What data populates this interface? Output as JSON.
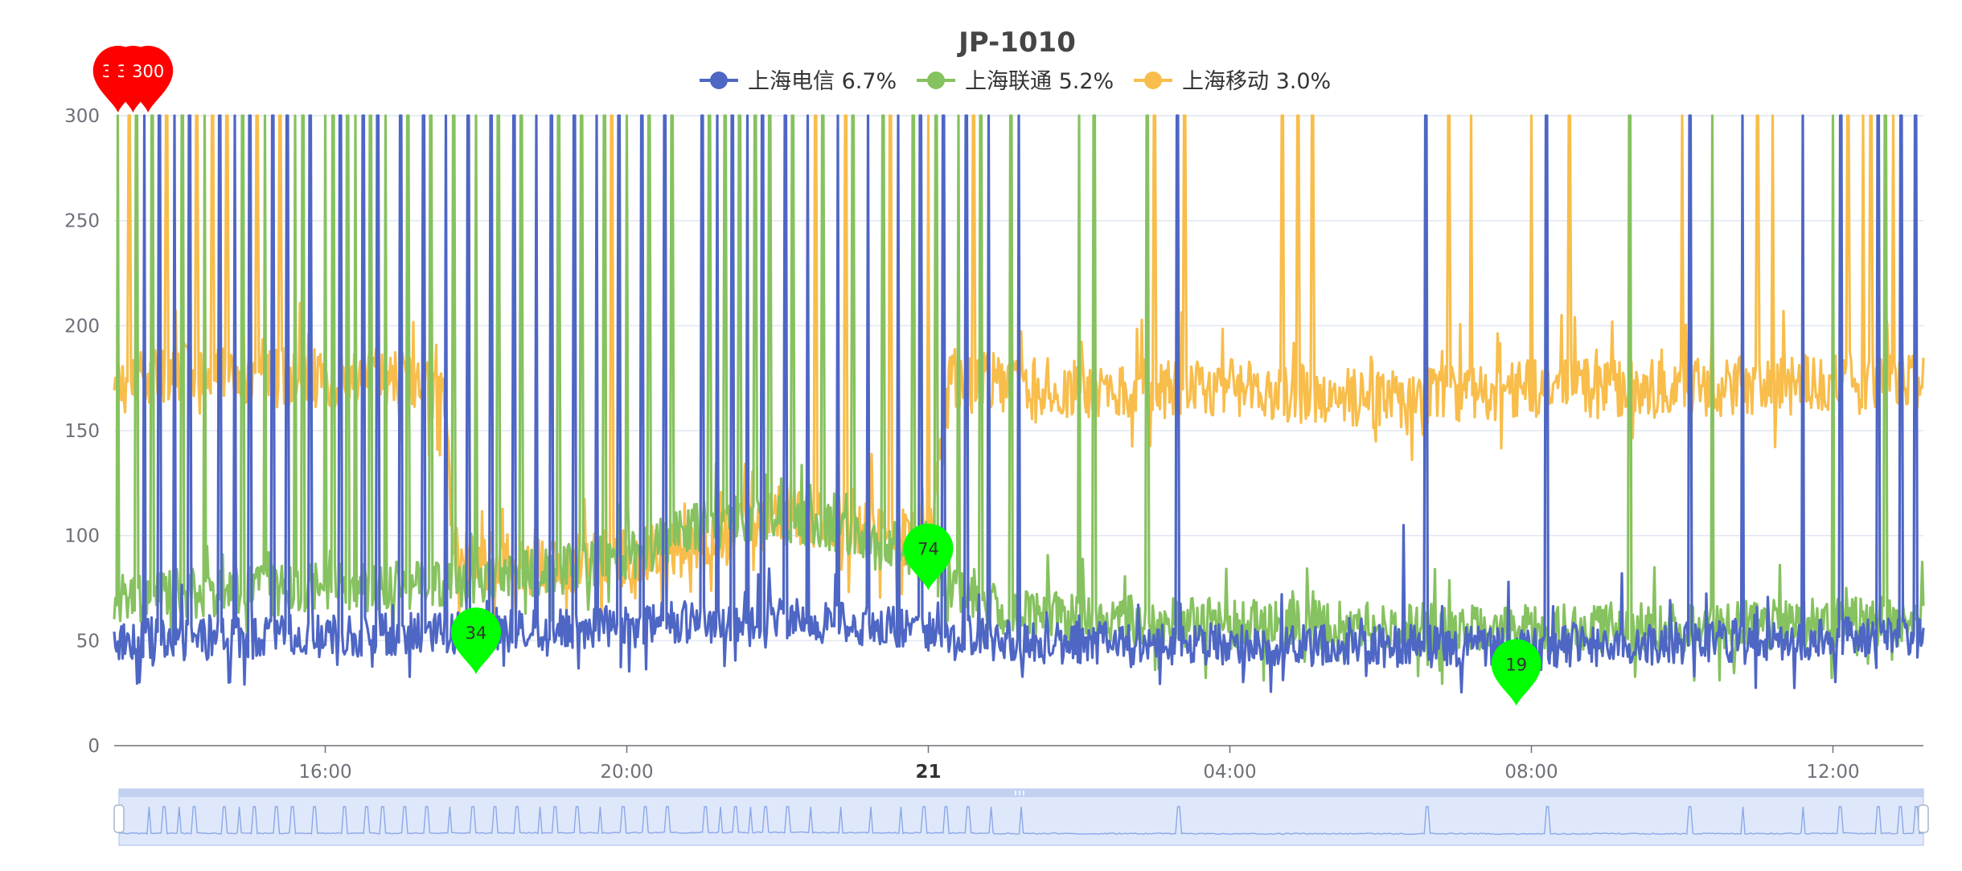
{
  "chart_data": {
    "type": "line",
    "title": "JP-1010",
    "colors": {
      "series_blue": "#4e66c4",
      "series_green": "#86c25f",
      "series_yellow": "#f8bd4b",
      "grid": "#e0e6f1",
      "axis": "#6e7079",
      "max_pin": "#ff0000",
      "min_pin": "#00ff00",
      "zoom_fill": "#dfe8fb",
      "zoom_border": "#c3d1f0",
      "zoom_line": "#8aa8e8"
    },
    "ylim": [
      0,
      300
    ],
    "y_ticks": [
      0,
      50,
      100,
      150,
      200,
      250,
      300
    ],
    "x_range_hours": [
      13.2,
      37.2
    ],
    "x_ticks": [
      {
        "label": "16:00",
        "hour": 16,
        "bold": false
      },
      {
        "label": "20:00",
        "hour": 20,
        "bold": false
      },
      {
        "label": "21",
        "hour": 24,
        "bold": true
      },
      {
        "label": "04:00",
        "hour": 28,
        "bold": false
      },
      {
        "label": "08:00",
        "hour": 32,
        "bold": false
      },
      {
        "label": "12:00",
        "hour": 36,
        "bold": false
      }
    ],
    "legend_position": "top-center",
    "grid": true,
    "series": [
      {
        "name": "上海电信 6.7%",
        "legend_label": "上海电信 6.7%",
        "color": "#4e66c4",
        "baseline": [
          [
            13.2,
            50
          ],
          [
            16,
            52
          ],
          [
            19,
            55
          ],
          [
            20,
            58
          ],
          [
            22,
            60
          ],
          [
            23,
            58
          ],
          [
            24,
            55
          ],
          [
            25,
            50
          ],
          [
            28,
            48
          ],
          [
            32,
            47
          ],
          [
            35,
            50
          ],
          [
            37.2,
            52
          ]
        ],
        "noise": 10,
        "spikes_to_300": [
          13.6,
          13.8,
          14.0,
          14.2,
          14.6,
          14.8,
          15.0,
          15.3,
          15.5,
          15.8,
          16.2,
          16.5,
          16.7,
          17.0,
          17.3,
          17.6,
          17.9,
          18.2,
          18.5,
          18.8,
          19.0,
          19.3,
          19.6,
          19.9,
          20.2,
          20.5,
          21.0,
          21.2,
          21.4,
          21.6,
          21.8,
          22.1,
          22.4,
          22.8,
          23.2,
          23.6,
          23.9,
          24.2,
          24.5,
          24.8,
          25.2,
          27.3,
          30.6,
          32.2,
          34.1,
          34.8,
          35.6,
          36.1,
          36.6,
          36.9,
          37.1
        ],
        "minor_peaks": [
          [
            30.3,
            105
          ],
          [
            31.7,
            78
          ],
          [
            33.2,
            82
          ]
        ]
      },
      {
        "name": "上海联通 5.2%",
        "legend_label": "上海联通 5.2%",
        "color": "#86c25f",
        "baseline": [
          [
            13.2,
            70
          ],
          [
            14,
            72
          ],
          [
            16,
            75
          ],
          [
            18,
            78
          ],
          [
            20,
            90
          ],
          [
            21,
            105
          ],
          [
            22,
            110
          ],
          [
            23,
            100
          ],
          [
            24,
            85
          ],
          [
            25,
            62
          ],
          [
            28,
            58
          ],
          [
            32,
            55
          ],
          [
            35,
            57
          ],
          [
            37.2,
            60
          ]
        ],
        "noise": 12,
        "spikes_to_300": [
          13.25,
          13.5,
          13.7,
          14.1,
          14.4,
          14.9,
          15.2,
          15.6,
          15.7,
          16.0,
          16.1,
          16.3,
          16.4,
          16.6,
          16.8,
          17.1,
          17.4,
          17.7,
          18.0,
          18.3,
          18.6,
          19.1,
          19.4,
          19.7,
          20.0,
          20.3,
          20.6,
          21.1,
          21.3,
          21.5,
          21.7,
          21.9,
          22.2,
          22.6,
          23.0,
          23.4,
          23.8,
          24.1,
          24.4,
          24.7,
          25.1,
          26.0,
          26.2,
          26.9,
          33.3,
          34.4,
          36.0,
          36.7
        ],
        "minor_peaks": []
      },
      {
        "name": "上海移动 3.0%",
        "legend_label": "上海移动 3.0%",
        "color": "#f8bd4b",
        "baseline": [
          [
            13.2,
            170
          ],
          [
            14,
            178
          ],
          [
            15,
            176
          ],
          [
            16,
            175
          ],
          [
            17,
            175
          ],
          [
            17.6,
            165
          ],
          [
            17.7,
            90
          ],
          [
            19,
            85
          ],
          [
            20,
            90
          ],
          [
            21,
            95
          ],
          [
            22,
            110
          ],
          [
            23,
            105
          ],
          [
            24,
            95
          ],
          [
            24.3,
            175
          ],
          [
            26,
            170
          ],
          [
            28,
            170
          ],
          [
            30,
            165
          ],
          [
            32,
            170
          ],
          [
            34,
            170
          ],
          [
            35,
            172
          ],
          [
            37.2,
            175
          ]
        ],
        "noise": 14,
        "spikes_to_300": [
          13.4,
          13.9,
          14.3,
          14.5,
          14.7,
          15.1,
          15.4,
          19.8,
          22.5,
          22.9,
          23.5,
          24.0,
          24.6,
          27.0,
          27.4,
          28.7,
          28.9,
          29.1,
          30.9,
          31.2,
          32.0,
          32.5,
          34.0,
          35.0,
          35.2,
          36.2,
          36.4,
          36.5,
          36.8
        ],
        "minor_peaks": []
      }
    ],
    "max_markers": [
      {
        "label": "300",
        "hour": 13.25,
        "value": 300
      },
      {
        "label": "300",
        "hour": 13.45,
        "value": 300
      },
      {
        "label": "300",
        "hour": 13.65,
        "value": 300
      }
    ],
    "min_markers": [
      {
        "label": "34",
        "hour": 18.0,
        "value": 34,
        "series": "上海电信 6.7%"
      },
      {
        "label": "74",
        "hour": 24.0,
        "value": 74,
        "series": "上海移动 3.0%"
      },
      {
        "label": "19",
        "hour": 31.8,
        "value": 19,
        "series": "上海电信 6.7%"
      }
    ],
    "data_zoom": {
      "start": 0,
      "end": 100
    }
  }
}
